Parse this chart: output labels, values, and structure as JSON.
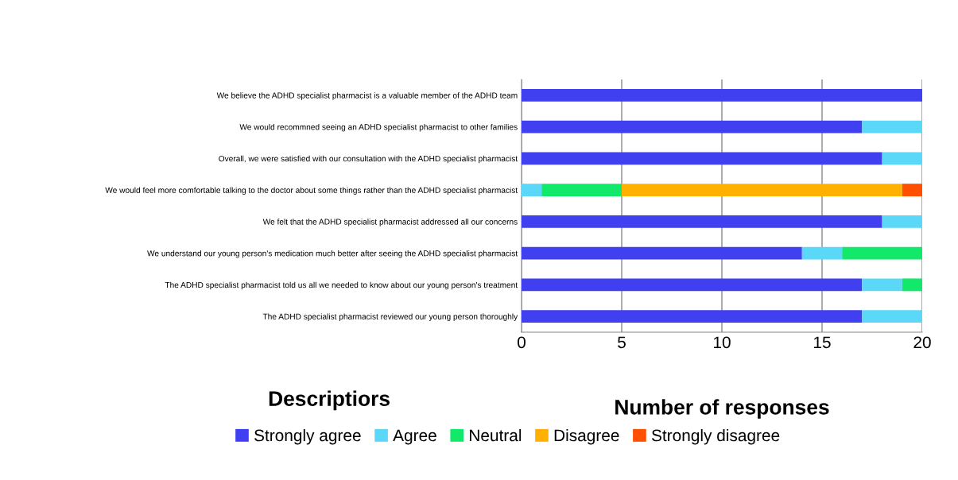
{
  "chart_data": {
    "type": "bar",
    "orientation": "horizontal",
    "stacked": true,
    "xlabel": "Number of responses",
    "ylabel": "Descriptiors",
    "categories": [
      "We believe the ADHD specialist pharmacist is a valuable member of the ADHD team",
      "We would recommned seeing an ADHD specialist pharmacist to other families",
      "Overall, we were satisfied with our consultation with the ADHD specialist pharmacist",
      "We would feel more comfortable talking to the doctor about some things rather than the ADHD specialist pharmacist",
      "We felt that the ADHD specialist pharmacist addressed all our concerns",
      "We understand our young person's medication much better after seeing the ADHD specialist pharmacist",
      "The ADHD specialist pharmacist told us all we needed to know about our young person's treatment",
      "The ADHD specialist pharmacist reviewed our young person thoroughly"
    ],
    "series": [
      {
        "name": "Strongly agree",
        "color": "#4040f0",
        "values": [
          20,
          17,
          18,
          0,
          18,
          14,
          17,
          17
        ]
      },
      {
        "name": "Agree",
        "color": "#5bd7f7",
        "values": [
          0,
          3,
          2,
          1,
          2,
          2,
          2,
          3
        ]
      },
      {
        "name": "Neutral",
        "color": "#12e86a",
        "values": [
          0,
          0,
          0,
          4,
          0,
          4,
          1,
          0
        ]
      },
      {
        "name": "Disagree",
        "color": "#ffb000",
        "values": [
          0,
          0,
          0,
          14,
          0,
          0,
          0,
          0
        ]
      },
      {
        "name": "Strongly disagree",
        "color": "#ff4f00",
        "values": [
          0,
          0,
          0,
          1,
          0,
          0,
          0,
          0
        ]
      }
    ],
    "xlim": [
      0,
      20
    ],
    "xticks": [
      0,
      5,
      10,
      15,
      20
    ],
    "grid": "x",
    "legend": "bottom"
  }
}
